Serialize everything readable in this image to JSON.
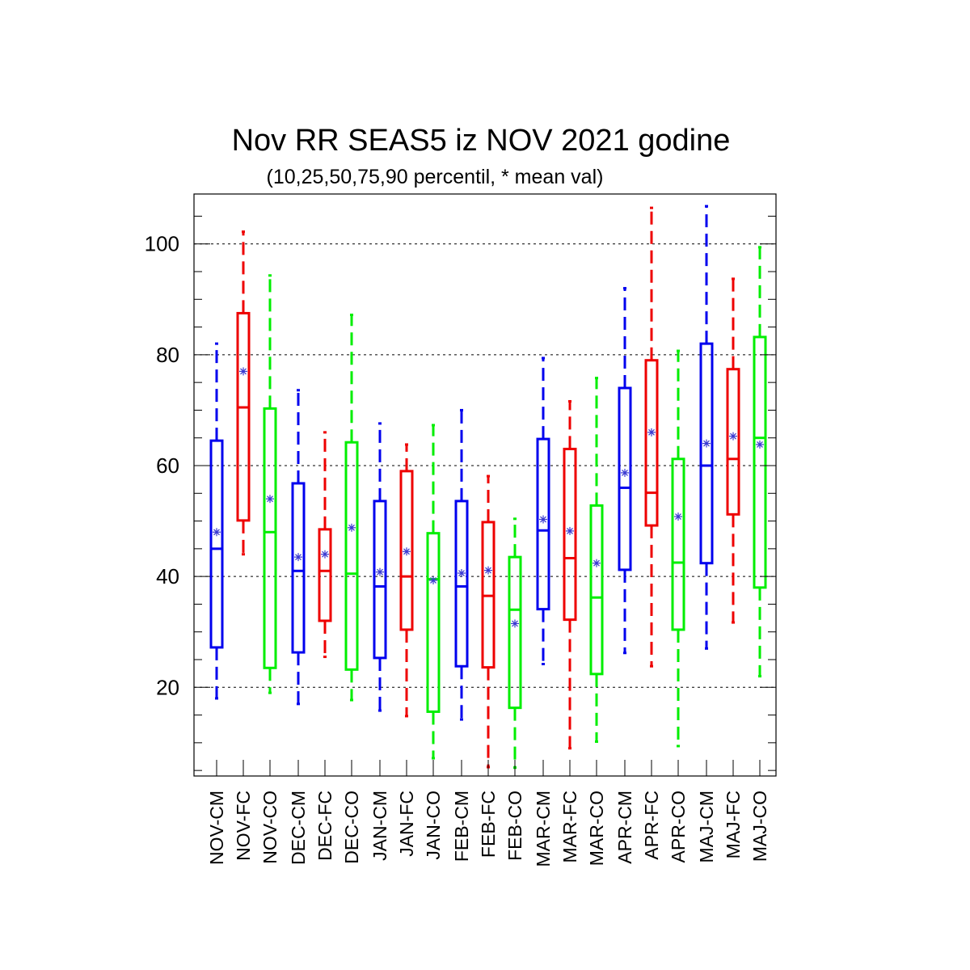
{
  "chart_data": {
    "type": "boxplot",
    "title": "Nov RR SEAS5 iz NOV 2021 godine",
    "subtitle": "(10,25,50,75,90 percentil, * mean val)",
    "ylim": [
      4,
      109
    ],
    "yticks": [
      20,
      40,
      60,
      80,
      100
    ],
    "grid": "horizontal-dashed",
    "series_colors": {
      "CM": "#0000ee",
      "FC": "#ee0000",
      "CO": "#00ee00"
    },
    "mean_marker_color": "#3a3ad0",
    "boxes": [
      {
        "label": "NOV-CM",
        "group": "CM",
        "p10": 18,
        "p25": 27.2,
        "p50": 45,
        "p75": 64.5,
        "p90": 82,
        "mean": 48
      },
      {
        "label": "NOV-FC",
        "group": "FC",
        "p10": 44,
        "p25": 50.1,
        "p50": 70.5,
        "p75": 87.5,
        "p90": 102.2,
        "mean": 77
      },
      {
        "label": "NOV-CO",
        "group": "CO",
        "p10": 19,
        "p25": 23.5,
        "p50": 48,
        "p75": 70.3,
        "p90": 94.3,
        "mean": 54
      },
      {
        "label": "DEC-CM",
        "group": "CM",
        "p10": 17,
        "p25": 26.3,
        "p50": 41,
        "p75": 56.8,
        "p90": 73.6,
        "mean": 43.5
      },
      {
        "label": "DEC-FC",
        "group": "FC",
        "p10": 25.5,
        "p25": 32,
        "p50": 41,
        "p75": 48.5,
        "p90": 66,
        "mean": 44
      },
      {
        "label": "DEC-CO",
        "group": "CO",
        "p10": 17.7,
        "p25": 23.2,
        "p50": 40.5,
        "p75": 64.2,
        "p90": 87.2,
        "mean": 48.8
      },
      {
        "label": "JAN-CM",
        "group": "CM",
        "p10": 15.8,
        "p25": 25.3,
        "p50": 38.2,
        "p75": 53.6,
        "p90": 67.6,
        "mean": 40.8
      },
      {
        "label": "JAN-FC",
        "group": "FC",
        "p10": 14.8,
        "p25": 30.4,
        "p50": 40,
        "p75": 59,
        "p90": 63.8,
        "mean": 44.5
      },
      {
        "label": "JAN-CO",
        "group": "CO",
        "p10": 7.2,
        "p25": 15.6,
        "p50": 39.5,
        "p75": 47.8,
        "p90": 67.3,
        "mean": 39.3
      },
      {
        "label": "FEB-CM",
        "group": "CM",
        "p10": 14.2,
        "p25": 23.8,
        "p50": 38.2,
        "p75": 53.6,
        "p90": 70,
        "mean": 40.6
      },
      {
        "label": "FEB-FC",
        "group": "FC",
        "p10": 5.6,
        "p25": 23.6,
        "p50": 36.5,
        "p75": 49.8,
        "p90": 58.1,
        "mean": 41.1
      },
      {
        "label": "FEB-CO",
        "group": "CO",
        "p10": 5.5,
        "p25": 16.3,
        "p50": 34,
        "p75": 43.5,
        "p90": 50.4,
        "mean": 31.5
      },
      {
        "label": "MAR-CM",
        "group": "CM",
        "p10": 24.2,
        "p25": 34.1,
        "p50": 48.3,
        "p75": 64.8,
        "p90": 79.4,
        "mean": 50.3
      },
      {
        "label": "MAR-FC",
        "group": "FC",
        "p10": 9,
        "p25": 32.2,
        "p50": 43.3,
        "p75": 63,
        "p90": 71.6,
        "mean": 48.2
      },
      {
        "label": "MAR-CO",
        "group": "CO",
        "p10": 10.2,
        "p25": 22.4,
        "p50": 36.2,
        "p75": 52.8,
        "p90": 75.8,
        "mean": 42.4
      },
      {
        "label": "APR-CM",
        "group": "CM",
        "p10": 26.2,
        "p25": 41.2,
        "p50": 56,
        "p75": 74,
        "p90": 92,
        "mean": 58.7
      },
      {
        "label": "APR-FC",
        "group": "FC",
        "p10": 23.8,
        "p25": 49.2,
        "p50": 55.1,
        "p75": 79,
        "p90": 106.5,
        "mean": 66
      },
      {
        "label": "APR-CO",
        "group": "CO",
        "p10": 9.4,
        "p25": 30.4,
        "p50": 42.5,
        "p75": 61.2,
        "p90": 80.7,
        "mean": 50.8
      },
      {
        "label": "MAJ-CM",
        "group": "CM",
        "p10": 27,
        "p25": 42.4,
        "p50": 60,
        "p75": 82,
        "p90": 106.8,
        "mean": 64
      },
      {
        "label": "MAJ-FC",
        "group": "FC",
        "p10": 31.7,
        "p25": 51.2,
        "p50": 61.2,
        "p75": 77.4,
        "p90": 93.7,
        "mean": 65.3
      },
      {
        "label": "MAJ-CO",
        "group": "CO",
        "p10": 22,
        "p25": 38,
        "p50": 65,
        "p75": 83.2,
        "p90": 99.4,
        "mean": 63.8
      }
    ]
  }
}
